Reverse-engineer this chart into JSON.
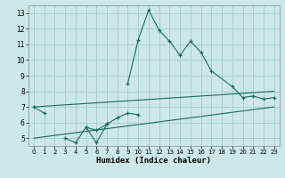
{
  "xlabel": "Humidex (Indice chaleur)",
  "bg_color": "#cce8e8",
  "grid_color": "#aacfcf",
  "line_color": "#1a6b5e",
  "xlim": [
    -0.5,
    23.5
  ],
  "ylim": [
    4.5,
    13.5
  ],
  "xticks": [
    0,
    1,
    2,
    3,
    4,
    5,
    6,
    7,
    8,
    9,
    10,
    11,
    12,
    13,
    14,
    15,
    16,
    17,
    18,
    19,
    20,
    21,
    22,
    23
  ],
  "yticks": [
    5,
    6,
    7,
    8,
    9,
    10,
    11,
    12,
    13
  ],
  "series": [
    {
      "x": [
        0,
        23
      ],
      "y": [
        7.0,
        8.0
      ],
      "marker": false
    },
    {
      "x": [
        0,
        23
      ],
      "y": [
        5.0,
        7.0
      ],
      "marker": false
    },
    {
      "x": [
        0,
        1
      ],
      "y": [
        7.0,
        6.6
      ],
      "marker": true
    },
    {
      "x": [
        3,
        4,
        5,
        6,
        7
      ],
      "y": [
        5.0,
        4.7,
        5.7,
        5.5,
        5.9
      ],
      "marker": true
    },
    {
      "x": [
        5,
        6,
        7,
        8,
        9,
        10
      ],
      "y": [
        5.7,
        4.7,
        5.9,
        6.3,
        6.6,
        6.5
      ],
      "marker": true
    },
    {
      "x": [
        9,
        10,
        11,
        12,
        13,
        14,
        15,
        16,
        17,
        19,
        20,
        21,
        22,
        23
      ],
      "y": [
        8.5,
        11.3,
        13.2,
        11.9,
        11.2,
        10.3,
        11.2,
        10.5,
        9.3,
        8.3,
        7.6,
        7.7,
        7.5,
        7.6
      ],
      "marker": true
    }
  ]
}
